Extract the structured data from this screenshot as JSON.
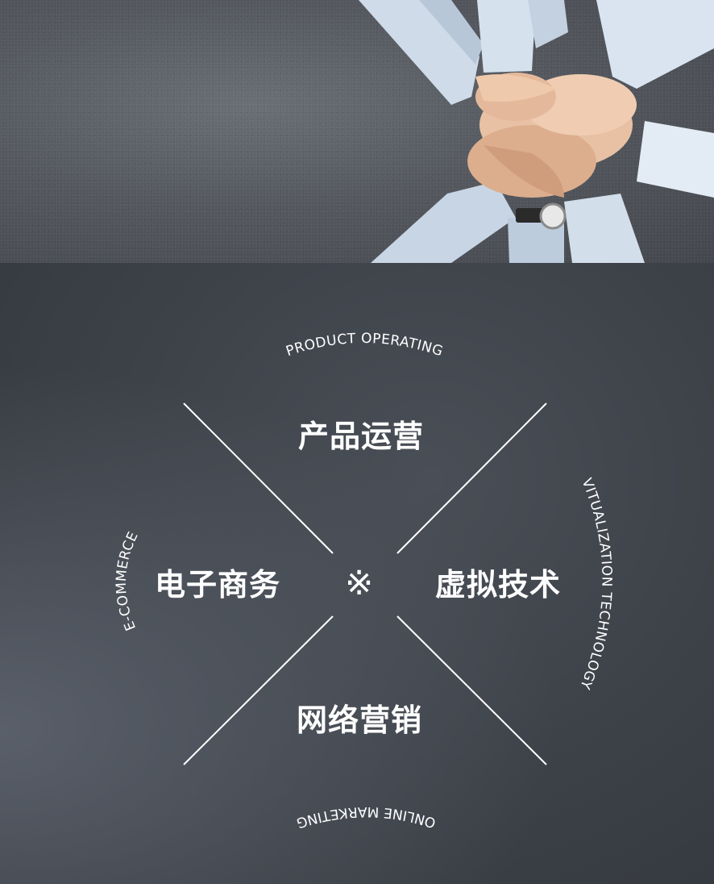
{
  "diagram": {
    "center_symbol": "※",
    "quadrants": {
      "top": {
        "cn": "产品运营",
        "en": "PRODUCT OPERATING"
      },
      "left": {
        "cn": "电子商务",
        "en": "E-COMMERCE"
      },
      "right": {
        "cn": "虚拟技术",
        "en": "VITUALIZATION TECHNOLOGY"
      },
      "bottom": {
        "cn": "网络营销",
        "en": "ONLINE MARKETING"
      }
    }
  },
  "colors": {
    "text": "#ffffff",
    "line": "#ffffff",
    "panel_bg": "#3d4249",
    "photo_bg": "#55595f"
  }
}
